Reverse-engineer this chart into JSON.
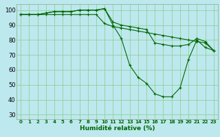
{
  "xlabel": "Humidité relative (%)",
  "bg_color": "#bde8ee",
  "line_color": "#006600",
  "grid_color": "#88cc88",
  "xlim": [
    -0.5,
    23.5
  ],
  "ylim": [
    27,
    104
  ],
  "xticks": [
    0,
    1,
    2,
    3,
    4,
    5,
    6,
    7,
    8,
    9,
    10,
    11,
    12,
    13,
    14,
    15,
    16,
    17,
    18,
    19,
    20,
    21,
    22,
    23
  ],
  "yticks": [
    30,
    40,
    50,
    60,
    70,
    80,
    90,
    100
  ],
  "curves": [
    [
      97,
      97,
      97,
      97,
      97,
      97,
      97,
      97,
      97,
      97,
      91,
      89,
      88,
      87,
      86,
      85,
      84,
      83,
      82,
      81,
      80,
      79,
      78,
      73
    ],
    [
      97,
      97,
      97,
      98,
      99,
      99,
      99,
      100,
      100,
      100,
      101,
      90,
      81,
      63,
      55,
      51,
      44,
      42,
      42,
      48,
      67,
      80,
      75,
      73
    ],
    [
      97,
      97,
      97,
      98,
      99,
      99,
      99,
      100,
      100,
      100,
      101,
      92,
      90,
      89,
      88,
      87,
      78,
      77,
      76,
      76,
      77,
      81,
      79,
      73
    ]
  ],
  "xlabel_fontsize": 6.5,
  "xtick_fontsize": 5.0,
  "ytick_fontsize": 6.0,
  "linewidth": 0.8,
  "markersize": 3.5,
  "markeredgewidth": 0.8
}
